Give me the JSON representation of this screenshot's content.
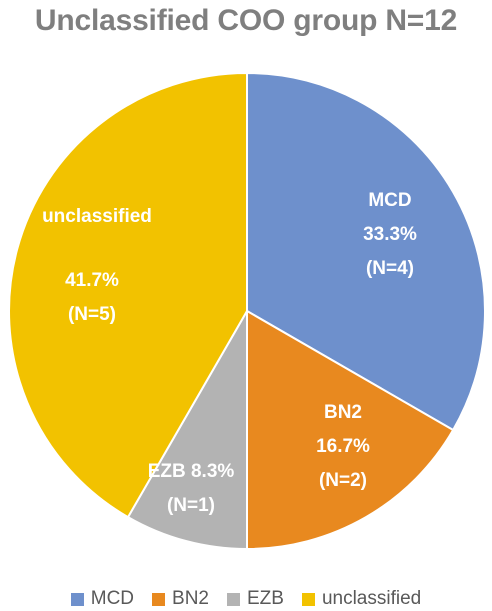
{
  "chart_data": {
    "type": "pie",
    "title": "Unclassified COO group N=12",
    "categories": [
      "MCD",
      "BN2",
      "EZB",
      "unclassified"
    ],
    "values": [
      4,
      2,
      1,
      5
    ],
    "percent_labels": [
      "33.3%",
      "16.7%",
      "8.3%",
      "41.7%"
    ],
    "count_labels": [
      "(N=4)",
      "(N=2)",
      "(N=1)",
      "(N=5)"
    ],
    "colors": [
      "#6e90cc",
      "#e8891f",
      "#b3b3b3",
      "#f2c200"
    ],
    "legend_position": "bottom"
  }
}
